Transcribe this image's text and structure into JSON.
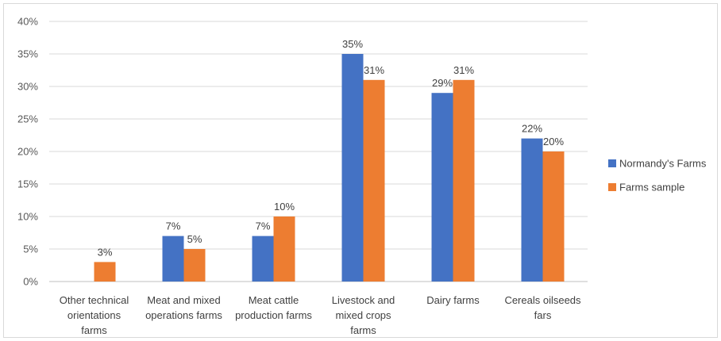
{
  "chart_data": {
    "type": "bar",
    "categories": [
      [
        "Other technical",
        "orientations",
        "farms"
      ],
      [
        "Meat and mixed",
        "operations farms"
      ],
      [
        "Meat cattle",
        "production farms"
      ],
      [
        "Livestock and",
        "mixed crops",
        "farms"
      ],
      [
        "Dairy farms"
      ],
      [
        "Cereals oilseeds",
        "fars"
      ]
    ],
    "series": [
      {
        "name": "Normandy's Farms",
        "values": [
          null,
          7,
          7,
          35,
          29,
          22
        ],
        "labels": [
          "",
          "7%",
          "7%",
          "35%",
          "29%",
          "22%"
        ],
        "color": "#4472C4"
      },
      {
        "name": "Farms sample",
        "values": [
          3,
          5,
          10,
          31,
          31,
          20
        ],
        "labels": [
          "3%",
          "5%",
          "10%",
          "31%",
          "31%",
          "20%"
        ],
        "color": "#ED7D31"
      }
    ],
    "ylim": [
      0,
      40
    ],
    "yticks": [
      "0%",
      "5%",
      "10%",
      "15%",
      "20%",
      "25%",
      "30%",
      "35%",
      "40%"
    ],
    "grid": true,
    "legend": "right",
    "gridline_color": "#d9d9d9"
  }
}
